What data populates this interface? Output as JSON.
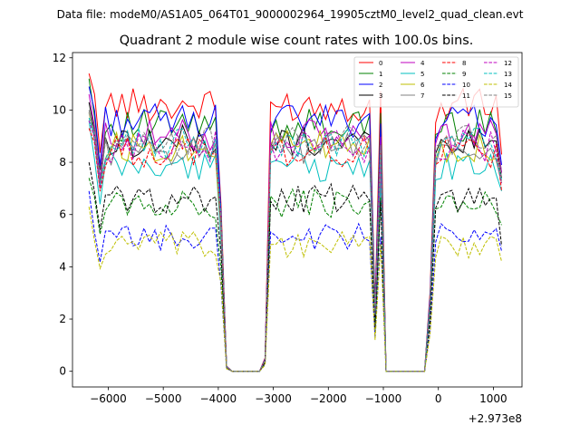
{
  "chart_data": {
    "type": "line",
    "suptitle": "Data file: modeM0/AS1A05_064T01_9000002964_19905cztM0_level2_quad_clean.evt",
    "title": "Quadrant 2 module wise count rates with 100.0s bins.",
    "xlabel": "",
    "ylabel": "",
    "x_offset_label": "+2.973e8",
    "xlim": [
      -6650,
      1520
    ],
    "ylim": [
      -0.6,
      12.2
    ],
    "x_ticks": [
      -6000,
      -5000,
      -4000,
      -3000,
      -2000,
      -1000,
      0,
      1000
    ],
    "x_tick_labels": [
      "−6000",
      "−5000",
      "−4000",
      "−3000",
      "−2000",
      "−1000",
      "0",
      "1000"
    ],
    "y_ticks": [
      0,
      2,
      4,
      6,
      8,
      10,
      12
    ],
    "y_tick_labels": [
      "0",
      "2",
      "4",
      "6",
      "8",
      "10",
      "12"
    ],
    "legend_position": "top-right",
    "legend_columns": 4,
    "x_start": -6350,
    "x_step": 100,
    "series": [
      {
        "name": "0",
        "color": "#ff0000",
        "dash": false,
        "level": 10.2,
        "start_value": 11.4,
        "end_value": 8.3
      },
      {
        "name": "1",
        "color": "#008000",
        "dash": false,
        "level": 9.4,
        "start_value": 11.2,
        "end_value": 7.6
      },
      {
        "name": "2",
        "color": "#0000ff",
        "dash": false,
        "level": 9.6,
        "start_value": 10.9,
        "end_value": 7.9
      },
      {
        "name": "3",
        "color": "#000000",
        "dash": false,
        "level": 8.8,
        "start_value": 10.3,
        "end_value": 7.4
      },
      {
        "name": "4",
        "color": "#bf00bf",
        "dash": false,
        "level": 9.0,
        "start_value": 10.6,
        "end_value": 7.6
      },
      {
        "name": "5",
        "color": "#00bfbf",
        "dash": false,
        "level": 7.8,
        "start_value": 9.6,
        "end_value": 6.9
      },
      {
        "name": "6",
        "color": "#bfbf00",
        "dash": false,
        "level": 8.6,
        "start_value": 9.9,
        "end_value": 7.3
      },
      {
        "name": "7",
        "color": "#808080",
        "dash": false,
        "level": 8.5,
        "start_value": 10.0,
        "end_value": 7.2
      },
      {
        "name": "8",
        "color": "#ff0000",
        "dash": true,
        "level": 8.4,
        "start_value": 9.3,
        "end_value": 6.9
      },
      {
        "name": "9",
        "color": "#008000",
        "dash": true,
        "level": 6.4,
        "start_value": 7.4,
        "end_value": 5.6
      },
      {
        "name": "10",
        "color": "#0000ff",
        "dash": true,
        "level": 5.1,
        "start_value": 6.9,
        "end_value": 4.6
      },
      {
        "name": "11",
        "color": "#000000",
        "dash": true,
        "level": 6.6,
        "start_value": 8.0,
        "end_value": 4.8
      },
      {
        "name": "12",
        "color": "#bf00bf",
        "dash": true,
        "level": 8.6,
        "start_value": 9.6,
        "end_value": 7.2
      },
      {
        "name": "13",
        "color": "#00bfbf",
        "dash": true,
        "level": 8.7,
        "start_value": 9.7,
        "end_value": 7.3
      },
      {
        "name": "14",
        "color": "#bfbf00",
        "dash": true,
        "level": 4.8,
        "start_value": 6.3,
        "end_value": 4.2
      },
      {
        "name": "15",
        "color": "#808080",
        "dash": true,
        "level": 8.8,
        "start_value": 9.9,
        "end_value": 7.4
      }
    ],
    "profile": {
      "ramp_down": [
        {
          "x": -3950,
          "f": 0.65
        },
        {
          "x": -3850,
          "f": 0.02
        }
      ],
      "zero_segments": [
        [
          -3750,
          -3250
        ],
        [
          -950,
          -250
        ]
      ],
      "ramp_up": [
        {
          "x": -3150,
          "f": 0.05
        }
      ],
      "spikes": [
        {
          "x": -1250,
          "f": 1.02
        },
        {
          "x": -1150,
          "f": 0.25
        },
        {
          "x": -150,
          "f": 0.3
        },
        {
          "x": -50,
          "f": 0.95
        }
      ]
    }
  }
}
